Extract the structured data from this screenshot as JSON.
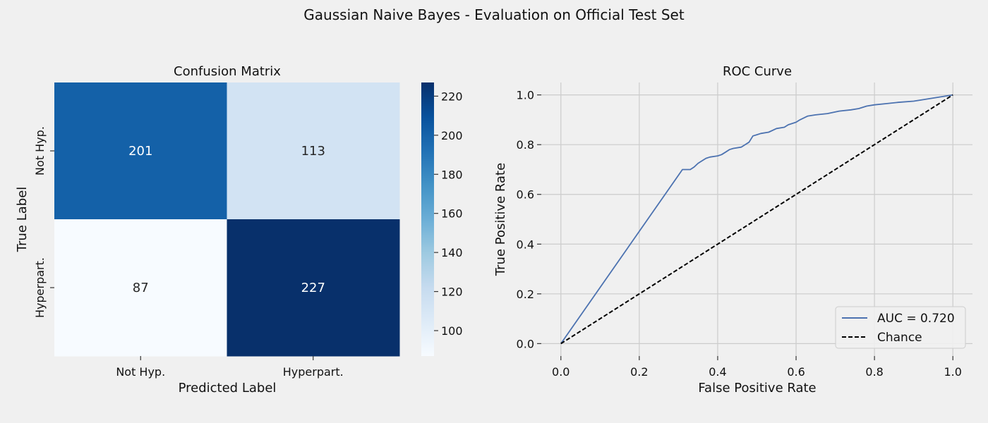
{
  "figure": {
    "title": "Gaussian Naive Bayes - Evaluation on Official Test Set"
  },
  "chart_data": [
    {
      "type": "heatmap",
      "title": "Confusion Matrix",
      "xlabel": "Predicted Label",
      "ylabel": "True Label",
      "x_categories": [
        "Not Hyp.",
        "Hyperpart."
      ],
      "y_categories": [
        "Not Hyp.",
        "Hyperpart."
      ],
      "values": [
        [
          201,
          113
        ],
        [
          87,
          227
        ]
      ],
      "colormap": "Blues",
      "colorbar": {
        "min": 87,
        "max": 227,
        "ticks": [
          100,
          120,
          140,
          160,
          180,
          200,
          220
        ]
      },
      "colors": {
        "low": "#f7fbff",
        "high": "#08306b",
        "text_dark": "#262626",
        "text_light": "#ffffff"
      }
    },
    {
      "type": "line",
      "title": "ROC Curve",
      "xlabel": "False Positive Rate",
      "ylabel": "True Positive Rate",
      "xlim": [
        -0.05,
        1.05
      ],
      "ylim": [
        -0.05,
        1.05
      ],
      "xticks": [
        0.0,
        0.2,
        0.4,
        0.6,
        0.8,
        1.0
      ],
      "yticks": [
        0.0,
        0.2,
        0.4,
        0.6,
        0.8,
        1.0
      ],
      "grid": true,
      "legend": "bottom-right",
      "series": [
        {
          "name": "AUC = 0.720",
          "color": "#4c72b0",
          "style": "solid",
          "x": [
            0.0,
            0.31,
            0.33,
            0.34,
            0.35,
            0.36,
            0.37,
            0.38,
            0.4,
            0.41,
            0.42,
            0.43,
            0.44,
            0.46,
            0.47,
            0.48,
            0.49,
            0.5,
            0.51,
            0.53,
            0.55,
            0.57,
            0.58,
            0.6,
            0.61,
            0.63,
            0.65,
            0.68,
            0.71,
            0.74,
            0.76,
            0.78,
            0.8,
            0.83,
            0.86,
            0.9,
            1.0
          ],
          "y": [
            0.0,
            0.7,
            0.7,
            0.71,
            0.725,
            0.735,
            0.745,
            0.75,
            0.755,
            0.76,
            0.77,
            0.78,
            0.785,
            0.79,
            0.8,
            0.81,
            0.835,
            0.84,
            0.845,
            0.85,
            0.865,
            0.87,
            0.88,
            0.89,
            0.9,
            0.915,
            0.92,
            0.925,
            0.935,
            0.94,
            0.945,
            0.955,
            0.96,
            0.965,
            0.97,
            0.975,
            1.0
          ]
        },
        {
          "name": "Chance",
          "color": "#000000",
          "style": "dashed",
          "x": [
            0.0,
            1.0
          ],
          "y": [
            0.0,
            1.0
          ]
        }
      ]
    }
  ]
}
